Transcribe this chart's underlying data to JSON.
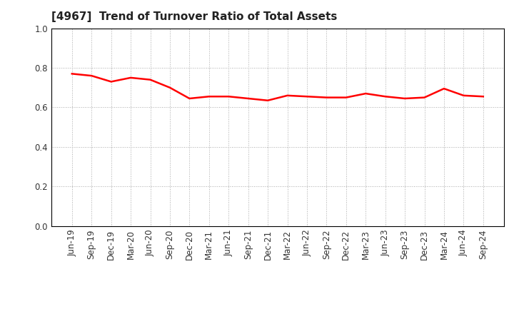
{
  "title": "[4967]  Trend of Turnover Ratio of Total Assets",
  "x_labels": [
    "Jun-19",
    "Sep-19",
    "Dec-19",
    "Mar-20",
    "Jun-20",
    "Sep-20",
    "Dec-20",
    "Mar-21",
    "Jun-21",
    "Sep-21",
    "Dec-21",
    "Mar-22",
    "Jun-22",
    "Sep-22",
    "Dec-22",
    "Mar-23",
    "Jun-23",
    "Sep-23",
    "Dec-23",
    "Mar-24",
    "Jun-24",
    "Sep-24"
  ],
  "y_values": [
    0.77,
    0.76,
    0.73,
    0.75,
    0.74,
    0.7,
    0.645,
    0.655,
    0.655,
    0.645,
    0.635,
    0.66,
    0.655,
    0.65,
    0.65,
    0.67,
    0.655,
    0.645,
    0.65,
    0.695,
    0.66,
    0.655
  ],
  "line_color": "#FF0000",
  "line_width": 1.8,
  "ylim": [
    0.0,
    1.0
  ],
  "yticks": [
    0.0,
    0.2,
    0.4,
    0.6,
    0.8,
    1.0
  ],
  "background_color": "#FFFFFF",
  "plot_bg_color": "#FFFFFF",
  "grid_color": "#AAAAAA",
  "title_fontsize": 11,
  "tick_fontsize": 8.5
}
